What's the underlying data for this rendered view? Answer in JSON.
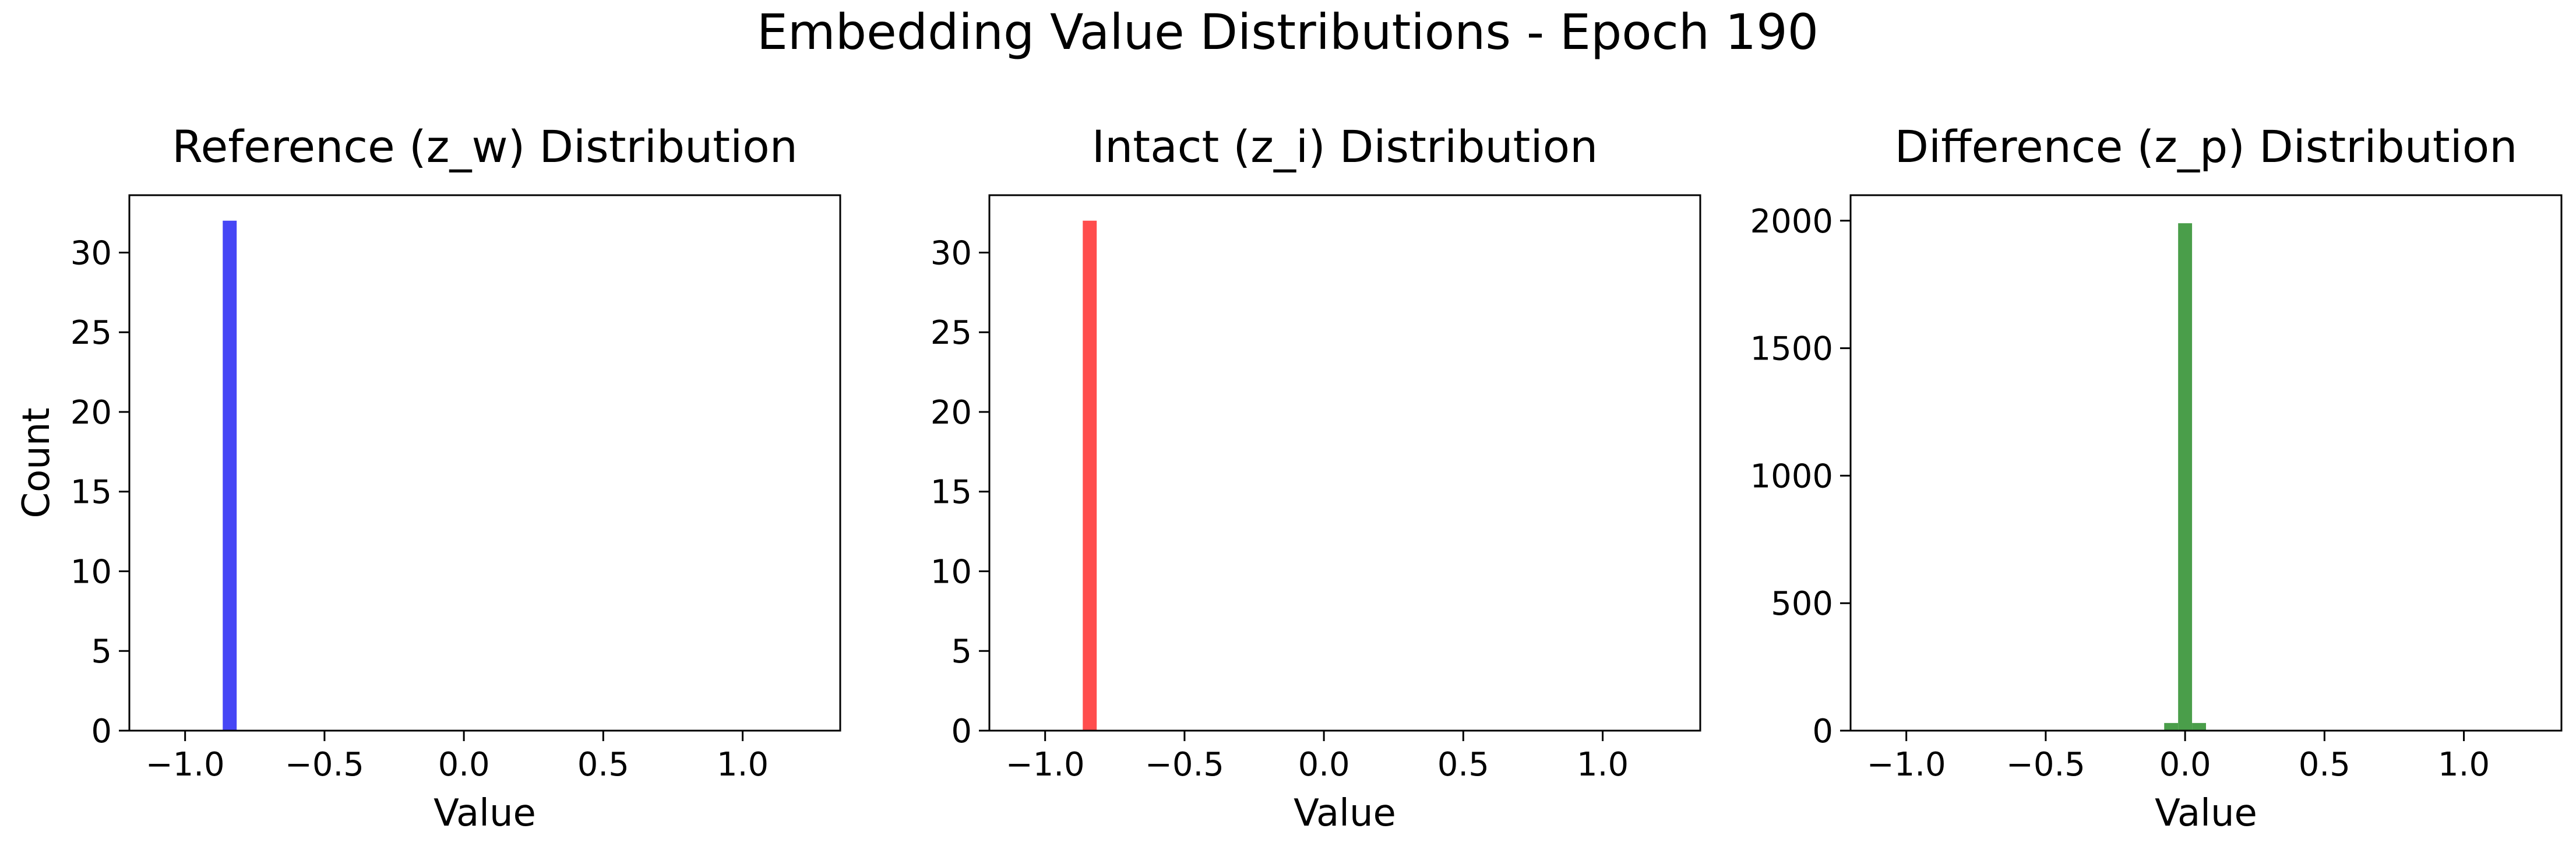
{
  "figure": {
    "title": "Embedding Value Distributions - Epoch 190"
  },
  "chart_data": [
    {
      "type": "bar",
      "title": "Reference (z_w) Distribution",
      "xlabel": "Value",
      "ylabel": "Count",
      "color": "#4646f5",
      "xlim": [
        -1.2,
        1.35
      ],
      "ylim": [
        0,
        33.6
      ],
      "xticks": [
        -1.0,
        -0.5,
        0.0,
        0.5,
        1.0
      ],
      "xtick_labels": [
        "−1.0",
        "−0.5",
        "0.0",
        "0.5",
        "1.0"
      ],
      "yticks": [
        0,
        5,
        10,
        15,
        20,
        25,
        30
      ],
      "ytick_labels": [
        "0",
        "5",
        "10",
        "15",
        "20",
        "25",
        "30"
      ],
      "bins": [
        {
          "x0": -0.865,
          "x1": -0.815,
          "count": 32
        }
      ]
    },
    {
      "type": "bar",
      "title": "Intact (z_i) Distribution",
      "xlabel": "Value",
      "ylabel": "",
      "color": "#ff4d4d",
      "xlim": [
        -1.2,
        1.35
      ],
      "ylim": [
        0,
        33.6
      ],
      "xticks": [
        -1.0,
        -0.5,
        0.0,
        0.5,
        1.0
      ],
      "xtick_labels": [
        "−1.0",
        "−0.5",
        "0.0",
        "0.5",
        "1.0"
      ],
      "yticks": [
        0,
        5,
        10,
        15,
        20,
        25,
        30
      ],
      "ytick_labels": [
        "0",
        "5",
        "10",
        "15",
        "20",
        "25",
        "30"
      ],
      "bins": [
        {
          "x0": -0.865,
          "x1": -0.815,
          "count": 32
        }
      ]
    },
    {
      "type": "bar",
      "title": "Difference (z_p) Distribution",
      "xlabel": "Value",
      "ylabel": "",
      "color": "#4a9e4a",
      "xlim": [
        -1.2,
        1.35
      ],
      "ylim": [
        0,
        2100
      ],
      "xticks": [
        -1.0,
        -0.5,
        0.0,
        0.5,
        1.0
      ],
      "xtick_labels": [
        "−1.0",
        "−0.5",
        "0.0",
        "0.5",
        "1.0"
      ],
      "yticks": [
        0,
        500,
        1000,
        1500,
        2000
      ],
      "ytick_labels": [
        "0",
        "500",
        "1000",
        "1500",
        "2000"
      ],
      "bins": [
        {
          "x0": -0.075,
          "x1": -0.025,
          "count": 30
        },
        {
          "x0": -0.025,
          "x1": 0.025,
          "count": 1990
        },
        {
          "x0": 0.025,
          "x1": 0.075,
          "count": 30
        }
      ]
    }
  ]
}
